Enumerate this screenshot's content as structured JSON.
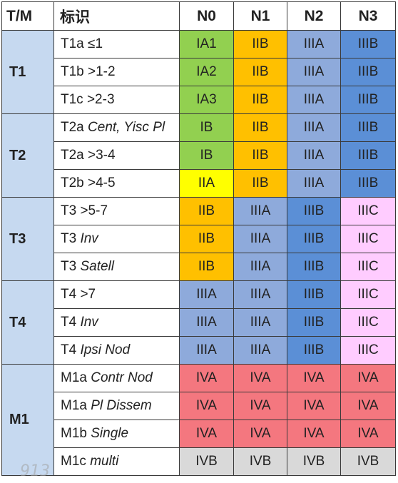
{
  "headers": [
    "T/M",
    "标识",
    "N0",
    "N1",
    "N2",
    "N3"
  ],
  "stage_colors": {
    "IA": "#92d050",
    "IB": "#92d050",
    "IIA": "#ffff00",
    "IIB": "#ffc000",
    "IIIA": "#8eaadb",
    "IIIB": "#5b8fd6",
    "IIIC": "#ffccff",
    "IVA": "#f4777f",
    "IVB": "#d9d9d9"
  },
  "groups": [
    {
      "t": "T1",
      "rows": [
        {
          "label": "T1a ≤1",
          "stages": [
            "IA1",
            "IIB",
            "IIIA",
            "IIIB"
          ]
        },
        {
          "label": "T1b >1-2",
          "stages": [
            "IA2",
            "IIB",
            "IIIA",
            "IIIB"
          ]
        },
        {
          "label": "T1c >2-3",
          "stages": [
            "IA3",
            "IIB",
            "IIIA",
            "IIIB"
          ]
        }
      ]
    },
    {
      "t": "T2",
      "rows": [
        {
          "label": "T2a ",
          "italic": "Cent, Yisc Pl",
          "stages": [
            "IB",
            "IIB",
            "IIIA",
            "IIIB"
          ]
        },
        {
          "label": "T2a >3-4",
          "stages": [
            "IB",
            "IIB",
            "IIIA",
            "IIIB"
          ]
        },
        {
          "label": "T2b >4-5",
          "stages": [
            "IIA",
            "IIB",
            "IIIA",
            "IIIB"
          ]
        }
      ]
    },
    {
      "t": "T3",
      "rows": [
        {
          "label": "T3 >5-7",
          "stages": [
            "IIB",
            "IIIA",
            "IIIB",
            "IIIC"
          ]
        },
        {
          "label": "T3 ",
          "italic": "Inv",
          "stages": [
            "IIB",
            "IIIA",
            "IIIB",
            "IIIC"
          ]
        },
        {
          "label": "T3 ",
          "italic": "Satell",
          "stages": [
            "IIB",
            "IIIA",
            "IIIB",
            "IIIC"
          ]
        }
      ]
    },
    {
      "t": "T4",
      "rows": [
        {
          "label": "T4 >7",
          "stages": [
            "IIIA",
            "IIIA",
            "IIIB",
            "IIIC"
          ]
        },
        {
          "label": "T4 ",
          "italic": "Inv",
          "stages": [
            "IIIA",
            "IIIA",
            "IIIB",
            "IIIC"
          ]
        },
        {
          "label": "T4 ",
          "italic": "Ipsi Nod",
          "stages": [
            "IIIA",
            "IIIA",
            "IIIB",
            "IIIC"
          ]
        }
      ]
    },
    {
      "t": "M1",
      "rows": [
        {
          "label": "M1a ",
          "italic": "Contr Nod",
          "stages": [
            "IVA",
            "IVA",
            "IVA",
            "IVA"
          ]
        },
        {
          "label": "M1a ",
          "italic": "Pl Dissem",
          "stages": [
            "IVA",
            "IVA",
            "IVA",
            "IVA"
          ]
        },
        {
          "label": "M1b ",
          "italic": "Single",
          "stages": [
            "IVA",
            "IVA",
            "IVA",
            "IVA"
          ]
        },
        {
          "label": "M1c ",
          "italic": "multi",
          "stages": [
            "IVB",
            "IVB",
            "IVB",
            "IVB"
          ]
        }
      ]
    }
  ],
  "watermark": "913"
}
